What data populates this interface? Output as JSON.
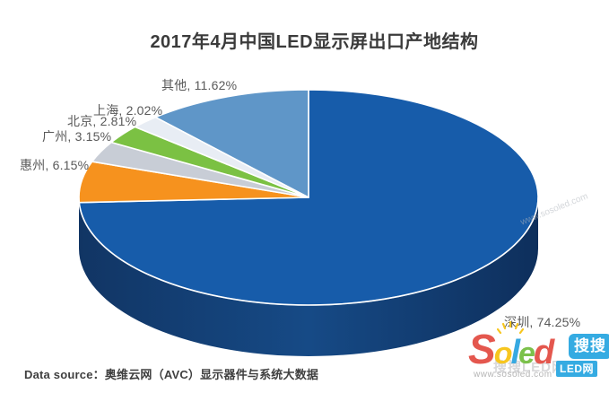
{
  "title": "2017年4月中国LED显示屏出口产地结构",
  "source_note": "Data source：奥维云网（AVC）显示器件与系统大数据",
  "chart_data": {
    "type": "pie",
    "style": "3d",
    "title": "2017年4月中国LED显示屏出口产地结构",
    "unit": "%",
    "start_angle_deg": 0,
    "direction": "clockwise",
    "legend": "none",
    "side_color": "#143e78",
    "slices": [
      {
        "label": "深圳",
        "value": 74.25,
        "color": "#175caa"
      },
      {
        "label": "惠州",
        "value": 6.15,
        "color": "#f6921e"
      },
      {
        "label": "广州",
        "value": 3.15,
        "color": "#c8cdd6"
      },
      {
        "label": "北京",
        "value": 2.81,
        "color": "#7bc143"
      },
      {
        "label": "上海",
        "value": 2.02,
        "color": "#e8edf4"
      },
      {
        "label": "其他",
        "value": 11.62,
        "color": "#5f96c8"
      }
    ],
    "data_labels": [
      "深圳, 74.25%",
      "惠州, 6.15%",
      "广州, 3.15%",
      "北京, 2.81%",
      "上海, 2.02%",
      "其他, 11.62%"
    ]
  },
  "watermark": {
    "brand_text": "Soled",
    "brand_letters": [
      {
        "char": "S",
        "color": "#e4574e"
      },
      {
        "char": "o",
        "color": "#f7c61f"
      },
      {
        "char": "l",
        "color": "#36a9e1"
      },
      {
        "char": "e",
        "color": "#7cc14b"
      },
      {
        "char": "d",
        "color": "#e4574e"
      }
    ],
    "badge_top": "搜搜",
    "badge_bottom": "LED网",
    "badge_color": "#35abe2",
    "url": "www.sosoled.com",
    "ghost_text": "搜搜LED网"
  }
}
